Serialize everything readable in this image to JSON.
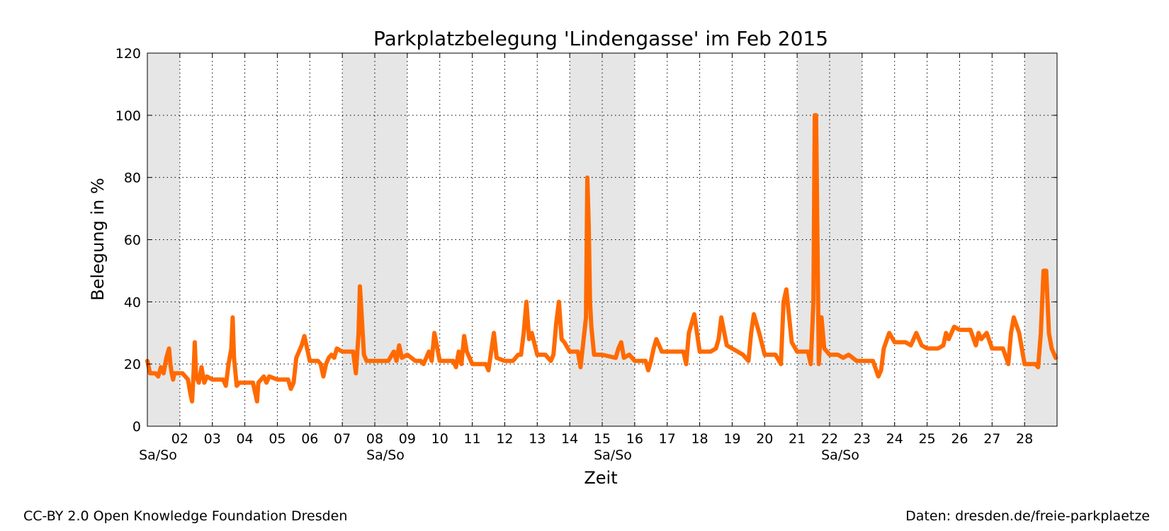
{
  "chart_data": {
    "type": "line",
    "title": "Parkplatzbelegung 'Lindengasse' im Feb 2015",
    "xlabel": "Zeit",
    "ylabel": "Belegung in %",
    "ylim": [
      0,
      120
    ],
    "yticks": [
      0,
      20,
      40,
      60,
      80,
      100,
      120
    ],
    "xlim": [
      "2015-02-01",
      "2015-03-01"
    ],
    "xtick_labels": [
      "02",
      "03",
      "04",
      "05",
      "06",
      "07",
      "08",
      "09",
      "10",
      "11",
      "12",
      "13",
      "14",
      "15",
      "16",
      "17",
      "18",
      "19",
      "20",
      "21",
      "22",
      "23",
      "24",
      "25",
      "26",
      "27",
      "28"
    ],
    "weekend_label": "Sa/So",
    "weekends": [
      {
        "start": "2015-02-01",
        "end": "2015-02-02"
      },
      {
        "start": "2015-02-07",
        "end": "2015-02-09"
      },
      {
        "start": "2015-02-14",
        "end": "2015-02-16"
      },
      {
        "start": "2015-02-21",
        "end": "2015-02-23"
      },
      {
        "start": "2015-02-28",
        "end": "2015-03-01"
      }
    ],
    "weekend_label_dates": [
      "2015-02-01",
      "2015-02-08",
      "2015-02-15",
      "2015-02-22"
    ],
    "grid": true,
    "line_color": "#ff6a00",
    "weekend_color": "#e6e6e6",
    "series": [
      {
        "x": [
          "2015-02-01 00:00",
          "2015-02-01 02:00",
          "2015-02-01 06:00",
          "2015-02-01 08:00",
          "2015-02-01 10:00",
          "2015-02-01 12:00",
          "2015-02-01 14:00",
          "2015-02-01 16:00",
          "2015-02-01 17:00",
          "2015-02-01 18:00",
          "2015-02-01 19:00",
          "2015-02-01 20:00",
          "2015-02-01 22:00",
          "2015-02-02 02:00",
          "2015-02-02 06:00",
          "2015-02-02 08:00",
          "2015-02-02 09:00",
          "2015-02-02 10:00",
          "2015-02-02 11:00",
          "2015-02-02 12:00",
          "2015-02-02 14:00",
          "2015-02-02 16:00",
          "2015-02-02 18:00",
          "2015-02-02 20:00",
          "2015-02-03 00:00",
          "2015-02-03 06:00",
          "2015-02-03 08:00",
          "2015-02-03 10:00",
          "2015-02-03 12:00",
          "2015-02-03 14:00",
          "2015-02-03 15:00",
          "2015-02-03 16:00",
          "2015-02-03 18:00",
          "2015-02-03 20:00",
          "2015-02-04 00:00",
          "2015-02-04 06:00",
          "2015-02-04 08:00",
          "2015-02-04 09:00",
          "2015-02-04 10:00",
          "2015-02-04 12:00",
          "2015-02-04 14:00",
          "2015-02-04 16:00",
          "2015-02-04 18:00",
          "2015-02-05 00:00",
          "2015-02-05 06:00",
          "2015-02-05 08:00",
          "2015-02-05 10:00",
          "2015-02-05 12:00",
          "2015-02-05 14:00",
          "2015-02-05 16:00",
          "2015-02-05 18:00",
          "2015-02-05 20:00",
          "2015-02-06 00:00",
          "2015-02-06 06:00",
          "2015-02-06 08:00",
          "2015-02-06 10:00",
          "2015-02-06 12:00",
          "2015-02-06 14:00",
          "2015-02-06 16:00",
          "2015-02-06 18:00",
          "2015-02-06 20:00",
          "2015-02-07 00:00",
          "2015-02-07 06:00",
          "2015-02-07 08:00",
          "2015-02-07 10:00",
          "2015-02-07 12:00",
          "2015-02-07 13:00",
          "2015-02-07 14:00",
          "2015-02-07 16:00",
          "2015-02-07 18:00",
          "2015-02-08 00:00",
          "2015-02-08 10:00",
          "2015-02-08 14:00",
          "2015-02-08 16:00",
          "2015-02-08 18:00",
          "2015-02-08 20:00",
          "2015-02-09 00:00",
          "2015-02-09 06:00",
          "2015-02-09 10:00",
          "2015-02-09 12:00",
          "2015-02-09 14:00",
          "2015-02-09 16:00",
          "2015-02-09 18:00",
          "2015-02-09 20:00",
          "2015-02-10 00:00",
          "2015-02-10 06:00",
          "2015-02-10 10:00",
          "2015-02-10 12:00",
          "2015-02-10 14:00",
          "2015-02-10 16:00",
          "2015-02-10 18:00",
          "2015-02-10 20:00",
          "2015-02-11 00:00",
          "2015-02-11 06:00",
          "2015-02-11 10:00",
          "2015-02-11 12:00",
          "2015-02-11 14:00",
          "2015-02-11 16:00",
          "2015-02-11 18:00",
          "2015-02-12 00:00",
          "2015-02-12 06:00",
          "2015-02-12 10:00",
          "2015-02-12 12:00",
          "2015-02-12 14:00",
          "2015-02-12 16:00",
          "2015-02-12 18:00",
          "2015-02-12 20:00",
          "2015-02-13 00:00",
          "2015-02-13 06:00",
          "2015-02-13 10:00",
          "2015-02-13 12:00",
          "2015-02-13 14:00",
          "2015-02-13 16:00",
          "2015-02-13 18:00",
          "2015-02-13 20:00",
          "2015-02-14 00:00",
          "2015-02-14 06:00",
          "2015-02-14 08:00",
          "2015-02-14 10:00",
          "2015-02-14 12:00",
          "2015-02-14 13:00",
          "2015-02-14 14:00",
          "2015-02-14 15:00",
          "2015-02-14 16:00",
          "2015-02-14 18:00",
          "2015-02-14 20:00",
          "2015-02-15 00:00",
          "2015-02-15 10:00",
          "2015-02-15 12:00",
          "2015-02-15 14:00",
          "2015-02-15 16:00",
          "2015-02-15 20:00",
          "2015-02-16 00:00",
          "2015-02-16 08:00",
          "2015-02-16 10:00",
          "2015-02-16 12:00",
          "2015-02-16 14:00",
          "2015-02-16 16:00",
          "2015-02-16 20:00",
          "2015-02-17 00:00",
          "2015-02-17 08:00",
          "2015-02-17 12:00",
          "2015-02-17 14:00",
          "2015-02-17 16:00",
          "2015-02-17 20:00",
          "2015-02-18 00:00",
          "2015-02-18 08:00",
          "2015-02-18 12:00",
          "2015-02-18 14:00",
          "2015-02-18 16:00",
          "2015-02-18 20:00",
          "2015-02-19 00:00",
          "2015-02-19 08:00",
          "2015-02-19 12:00",
          "2015-02-19 14:00",
          "2015-02-19 16:00",
          "2015-02-19 20:00",
          "2015-02-20 00:00",
          "2015-02-20 08:00",
          "2015-02-20 12:00",
          "2015-02-20 13:00",
          "2015-02-20 14:00",
          "2015-02-20 16:00",
          "2015-02-20 20:00",
          "2015-02-21 00:00",
          "2015-02-21 08:00",
          "2015-02-21 10:00",
          "2015-02-21 12:00",
          "2015-02-21 13:00",
          "2015-02-21 14:00",
          "2015-02-21 16:00",
          "2015-02-21 18:00",
          "2015-02-21 20:00",
          "2015-02-22 00:00",
          "2015-02-22 06:00",
          "2015-02-22 10:00",
          "2015-02-22 14:00",
          "2015-02-22 20:00",
          "2015-02-23 00:00",
          "2015-02-23 08:00",
          "2015-02-23 12:00",
          "2015-02-23 14:00",
          "2015-02-23 16:00",
          "2015-02-23 20:00",
          "2015-02-24 00:00",
          "2015-02-24 08:00",
          "2015-02-24 12:00",
          "2015-02-24 14:00",
          "2015-02-24 16:00",
          "2015-02-24 20:00",
          "2015-02-25 00:00",
          "2015-02-25 08:00",
          "2015-02-25 12:00",
          "2015-02-25 14:00",
          "2015-02-25 16:00",
          "2015-02-25 20:00",
          "2015-02-26 00:00",
          "2015-02-26 08:00",
          "2015-02-26 12:00",
          "2015-02-26 14:00",
          "2015-02-26 16:00",
          "2015-02-26 20:00",
          "2015-02-27 00:00",
          "2015-02-27 08:00",
          "2015-02-27 12:00",
          "2015-02-27 14:00",
          "2015-02-27 16:00",
          "2015-02-27 20:00",
          "2015-02-28 00:00",
          "2015-02-28 08:00",
          "2015-02-28 10:00",
          "2015-02-28 12:00",
          "2015-02-28 14:00",
          "2015-02-28 16:00",
          "2015-02-28 18:00",
          "2015-02-28 20:00",
          "2015-02-28 23:00"
        ],
        "y": [
          21,
          17,
          17,
          16,
          19,
          17,
          22,
          25,
          20,
          17,
          15,
          17,
          17,
          17,
          15,
          10,
          8,
          16,
          27,
          16,
          14,
          19,
          14,
          16,
          15,
          15,
          15,
          13,
          20,
          25,
          35,
          22,
          13,
          14,
          14,
          14,
          10,
          8,
          14,
          15,
          16,
          14,
          16,
          15,
          15,
          15,
          12,
          14,
          22,
          24,
          26,
          29,
          21,
          21,
          20,
          16,
          20,
          22,
          23,
          22,
          25,
          24,
          24,
          24,
          17,
          30,
          45,
          38,
          23,
          21,
          21,
          21,
          24,
          21,
          26,
          22,
          23,
          21,
          21,
          20,
          22,
          24,
          21,
          30,
          21,
          21,
          21,
          19,
          24,
          20,
          29,
          24,
          20,
          20,
          20,
          18,
          24,
          30,
          22,
          21,
          21,
          23,
          23,
          30,
          40,
          28,
          30,
          23,
          23,
          21,
          23,
          33,
          40,
          28,
          27,
          24,
          24,
          19,
          27,
          35,
          80,
          65,
          40,
          32,
          23,
          23,
          23,
          22,
          25,
          27,
          22,
          23,
          21,
          21,
          18,
          21,
          25,
          28,
          24,
          24,
          24,
          24,
          20,
          30,
          36,
          24,
          24,
          25,
          28,
          35,
          26,
          25,
          23,
          21,
          30,
          36,
          30,
          23,
          23,
          20,
          30,
          40,
          44,
          27,
          24,
          24,
          20,
          40,
          100,
          100,
          20,
          35,
          25,
          23,
          23,
          22,
          23,
          21,
          21,
          21,
          16,
          18,
          25,
          30,
          27,
          27,
          26,
          28,
          30,
          26,
          25,
          25,
          26,
          30,
          28,
          32,
          31,
          31,
          26,
          30,
          28,
          30,
          25,
          25,
          20,
          30,
          35,
          30,
          20,
          20,
          19,
          30,
          50,
          50,
          30,
          25,
          22
        ]
      }
    ]
  },
  "footer": {
    "credit": "CC-BY 2.0 Open Knowledge Foundation Dresden",
    "source": "Daten: dresden.de/freie-parkplaetze"
  }
}
